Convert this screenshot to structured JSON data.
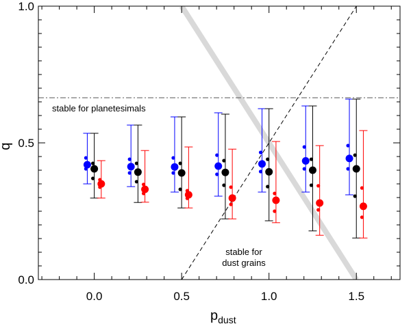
{
  "chart_data": {
    "type": "scatter",
    "xlabel": "p",
    "xlabel_sub": "dust",
    "ylabel": "q",
    "xlim": [
      -0.32,
      1.75
    ],
    "ylim": [
      0.0,
      1.0
    ],
    "x_ticks": [
      "0.0",
      "0.5",
      "1.0",
      "1.5"
    ],
    "x_tick_values": [
      0.0,
      0.5,
      1.0,
      1.5
    ],
    "y_ticks": [
      "0.0",
      "0.5",
      "1.0"
    ],
    "y_tick_values": [
      0.0,
      0.5,
      1.0
    ],
    "grid": false,
    "colors": {
      "blue": "#0000ff",
      "black": "#000000",
      "red": "#ff0000",
      "gray_band": "#d9d9d9"
    },
    "series": [
      {
        "color": "blue",
        "points": [
          {
            "x": -0.04,
            "y": 0.42,
            "ylo": 0.35,
            "yhi": 0.535,
            "d1": 0.445,
            "d2": 0.405
          },
          {
            "x": 0.21,
            "y": 0.413,
            "ylo": 0.34,
            "yhi": 0.565,
            "d1": 0.44,
            "d2": 0.39
          },
          {
            "x": 0.46,
            "y": 0.412,
            "ylo": 0.32,
            "yhi": 0.595,
            "d1": 0.445,
            "d2": 0.39
          },
          {
            "x": 0.71,
            "y": 0.415,
            "ylo": 0.305,
            "yhi": 0.61,
            "d1": 0.455,
            "d2": 0.385
          },
          {
            "x": 0.96,
            "y": 0.423,
            "ylo": 0.32,
            "yhi": 0.625,
            "d1": 0.465,
            "d2": 0.395
          },
          {
            "x": 1.21,
            "y": 0.434,
            "ylo": 0.32,
            "yhi": 0.635,
            "d1": 0.485,
            "d2": 0.405
          },
          {
            "x": 1.46,
            "y": 0.443,
            "ylo": 0.31,
            "yhi": 0.66,
            "d1": 0.49,
            "d2": 0.405
          }
        ]
      },
      {
        "color": "black",
        "points": [
          {
            "x": 0.0,
            "y": 0.405,
            "ylo": 0.298,
            "yhi": 0.535,
            "d1": 0.425,
            "d2": 0.37
          },
          {
            "x": 0.25,
            "y": 0.393,
            "ylo": 0.282,
            "yhi": 0.565,
            "d1": 0.425,
            "d2": 0.358
          },
          {
            "x": 0.5,
            "y": 0.39,
            "ylo": 0.262,
            "yhi": 0.595,
            "d1": 0.425,
            "d2": 0.33
          },
          {
            "x": 0.75,
            "y": 0.392,
            "ylo": 0.222,
            "yhi": 0.605,
            "d1": 0.435,
            "d2": 0.345
          },
          {
            "x": 1.0,
            "y": 0.394,
            "ylo": 0.215,
            "yhi": 0.625,
            "d1": 0.44,
            "d2": 0.34
          },
          {
            "x": 1.25,
            "y": 0.4,
            "ylo": 0.178,
            "yhi": 0.635,
            "d1": 0.44,
            "d2": 0.345
          },
          {
            "x": 1.5,
            "y": 0.405,
            "ylo": 0.152,
            "yhi": 0.66,
            "d1": 0.455,
            "d2": 0.305
          }
        ]
      },
      {
        "color": "red",
        "points": [
          {
            "x": 0.04,
            "y": 0.35,
            "ylo": 0.298,
            "yhi": 0.435,
            "d1": 0.365,
            "d2": 0.338
          },
          {
            "x": 0.29,
            "y": 0.33,
            "ylo": 0.283,
            "yhi": 0.472,
            "d1": 0.348,
            "d2": 0.315
          },
          {
            "x": 0.54,
            "y": 0.31,
            "ylo": 0.262,
            "yhi": 0.485,
            "d1": 0.325,
            "d2": 0.297
          },
          {
            "x": 0.79,
            "y": 0.298,
            "ylo": 0.222,
            "yhi": 0.477,
            "d1": 0.338,
            "d2": 0.275
          },
          {
            "x": 1.04,
            "y": 0.29,
            "ylo": 0.208,
            "yhi": 0.505,
            "d1": 0.315,
            "d2": 0.25
          },
          {
            "x": 1.29,
            "y": 0.28,
            "ylo": 0.162,
            "yhi": 0.49,
            "d1": 0.343,
            "d2": 0.255
          },
          {
            "x": 1.54,
            "y": 0.268,
            "ylo": 0.152,
            "yhi": 0.545,
            "d1": 0.335,
            "d2": 0.228
          }
        ]
      }
    ],
    "lines": {
      "dash_dot_y": 0.665,
      "dashed": [
        [
          0.5,
          0.0
        ],
        [
          1.5,
          1.0
        ]
      ],
      "gray_band": [
        [
          0.5,
          1.0
        ],
        [
          1.5,
          0.0
        ]
      ]
    },
    "annotations": {
      "planetesimals": "stable for planetesimals",
      "dust_line1": "stable for",
      "dust_line2": "dust grains"
    }
  }
}
